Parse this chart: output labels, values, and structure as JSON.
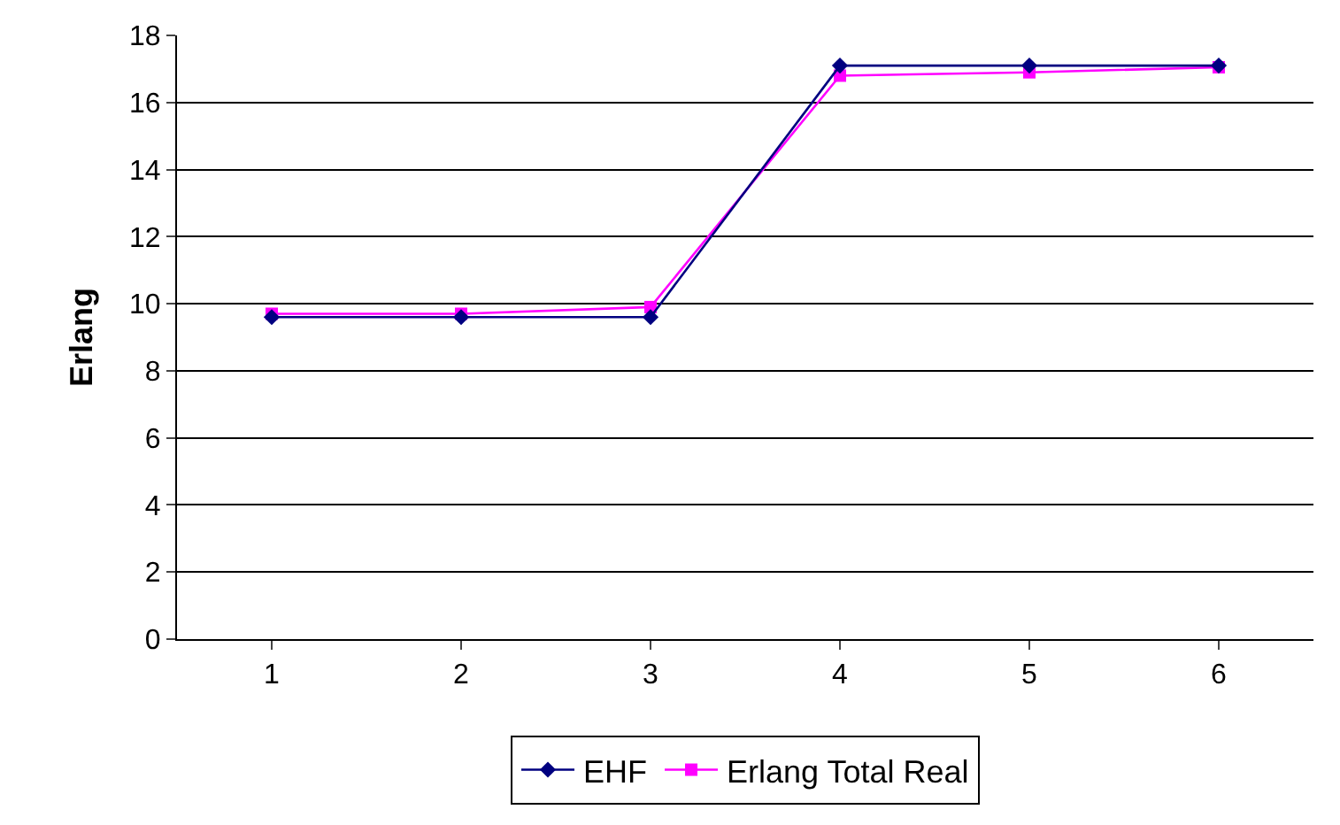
{
  "chart_data": {
    "type": "line",
    "ylabel": "Erlang",
    "categories": [
      "1",
      "2",
      "3",
      "4",
      "5",
      "6"
    ],
    "series": [
      {
        "name": "EHF",
        "color": "#000080",
        "marker": "diamond",
        "values": [
          9.6,
          9.6,
          9.6,
          17.1,
          17.1,
          17.1
        ]
      },
      {
        "name": "Erlang Total Real",
        "color": "#ff00ff",
        "marker": "square",
        "values": [
          9.7,
          9.7,
          9.9,
          16.8,
          16.9,
          17.05
        ]
      }
    ],
    "ylim": [
      0,
      18
    ],
    "yticks": [
      0,
      2,
      4,
      6,
      8,
      10,
      12,
      14,
      16,
      18
    ],
    "grid": "y",
    "legend": "bottom",
    "line_style": "solid"
  }
}
